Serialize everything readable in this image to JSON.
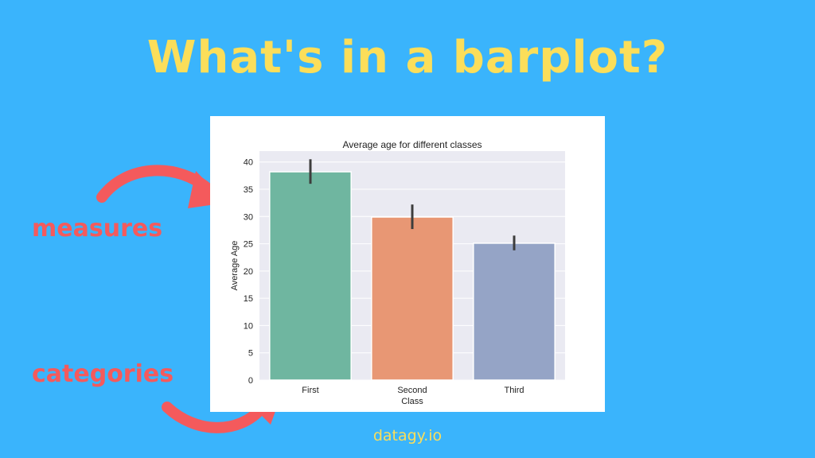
{
  "headline": "What's in a barplot?",
  "annotations": {
    "measures": "measures",
    "categories": "categories"
  },
  "footer": "datagy.io",
  "colors": {
    "background": "#3ab4fc",
    "headline": "#fbde5a",
    "annotation": "#f45a5c"
  },
  "chart_data": {
    "type": "bar",
    "title": "Average age for different classes",
    "xlabel": "Class",
    "ylabel": "Average Age",
    "categories": [
      "First",
      "Second",
      "Third"
    ],
    "values": [
      38.2,
      29.9,
      25.1
    ],
    "error_low": [
      36.0,
      27.7,
      23.8
    ],
    "error_high": [
      40.5,
      32.2,
      26.5
    ],
    "colors": [
      "#6fb6a0",
      "#e89774",
      "#95a4c6"
    ],
    "ylim": [
      0,
      42
    ],
    "yticks": [
      0,
      5,
      10,
      15,
      20,
      25,
      30,
      35,
      40
    ],
    "grid": true
  }
}
